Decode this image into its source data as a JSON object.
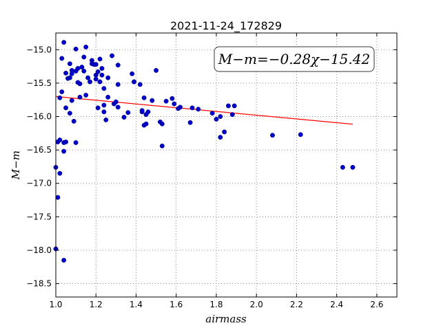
{
  "chart_data": {
    "type": "scatter",
    "title": "2021-11-24_172829",
    "xlabel": "airmass",
    "ylabel": "M−m",
    "xlim": [
      1.0,
      2.7
    ],
    "ylim": [
      -18.7,
      -14.75
    ],
    "xticks": [
      1.0,
      1.2,
      1.4,
      1.6,
      1.8,
      2.0,
      2.2,
      2.4,
      2.6
    ],
    "xtick_labels": [
      "1.0",
      "1.2",
      "1.4",
      "1.6",
      "1.8",
      "2.0",
      "2.2",
      "2.4",
      "2.6"
    ],
    "yticks": [
      -15.0,
      -15.5,
      -16.0,
      -16.5,
      -17.0,
      -17.5,
      -18.0,
      -18.5
    ],
    "ytick_labels": [
      "−15.0",
      "−15.5",
      "−16.0",
      "−16.5",
      "−17.0",
      "−17.5",
      "−18.0",
      "−18.5"
    ],
    "grid": true,
    "annotation": "M−m=−0.28χ−15.42",
    "colors": {
      "points": "#0000cc",
      "fit": "#ff0000",
      "grid": "#888888"
    },
    "fit": {
      "slope": -0.28,
      "intercept": -15.42,
      "x_range": [
        1.0,
        2.48
      ]
    },
    "points": [
      [
        1.0,
        -16.76
      ],
      [
        1.0,
        -17.98
      ],
      [
        1.01,
        -17.21
      ],
      [
        1.01,
        -16.38
      ],
      [
        1.02,
        -16.35
      ],
      [
        1.02,
        -16.85
      ],
      [
        1.02,
        -15.72
      ],
      [
        1.03,
        -15.63
      ],
      [
        1.03,
        -15.13
      ],
      [
        1.04,
        -14.89
      ],
      [
        1.04,
        -18.15
      ],
      [
        1.04,
        -16.39
      ],
      [
        1.04,
        -16.52
      ],
      [
        1.05,
        -16.38
      ],
      [
        1.05,
        -15.87
      ],
      [
        1.05,
        -15.35
      ],
      [
        1.06,
        -15.43
      ],
      [
        1.07,
        -15.42
      ],
      [
        1.07,
        -15.95
      ],
      [
        1.07,
        -15.21
      ],
      [
        1.08,
        -15.31
      ],
      [
        1.08,
        -15.36
      ],
      [
        1.08,
        -15.76
      ],
      [
        1.09,
        -16.07
      ],
      [
        1.1,
        -15.32
      ],
      [
        1.1,
        -16.39
      ],
      [
        1.1,
        -14.99
      ],
      [
        1.11,
        -15.28
      ],
      [
        1.11,
        -15.49
      ],
      [
        1.12,
        -15.51
      ],
      [
        1.12,
        -15.71
      ],
      [
        1.13,
        -15.26
      ],
      [
        1.14,
        -15.11
      ],
      [
        1.14,
        -15.32
      ],
      [
        1.15,
        -14.96
      ],
      [
        1.15,
        -15.68
      ],
      [
        1.16,
        -15.42
      ],
      [
        1.17,
        -15.48
      ],
      [
        1.18,
        -15.16
      ],
      [
        1.18,
        -15.21
      ],
      [
        1.19,
        -15.22
      ],
      [
        1.2,
        -15.22
      ],
      [
        1.2,
        -15.38
      ],
      [
        1.2,
        -15.44
      ],
      [
        1.21,
        -15.33
      ],
      [
        1.21,
        -15.87
      ],
      [
        1.22,
        -15.14
      ],
      [
        1.22,
        -15.48
      ],
      [
        1.23,
        -15.28
      ],
      [
        1.23,
        -15.38
      ],
      [
        1.24,
        -15.58
      ],
      [
        1.24,
        -15.83
      ],
      [
        1.24,
        -15.93
      ],
      [
        1.25,
        -16.05
      ],
      [
        1.26,
        -15.42
      ],
      [
        1.26,
        -15.71
      ],
      [
        1.28,
        -15.09
      ],
      [
        1.29,
        -15.81
      ],
      [
        1.3,
        -15.78
      ],
      [
        1.31,
        -15.86
      ],
      [
        1.31,
        -15.23
      ],
      [
        1.31,
        -15.52
      ],
      [
        1.34,
        -16.01
      ],
      [
        1.36,
        -15.94
      ],
      [
        1.38,
        -15.36
      ],
      [
        1.39,
        -15.48
      ],
      [
        1.39,
        -15.48
      ],
      [
        1.42,
        -15.52
      ],
      [
        1.43,
        -15.93
      ],
      [
        1.43,
        -15.91
      ],
      [
        1.44,
        -15.72
      ],
      [
        1.44,
        -16.13
      ],
      [
        1.45,
        -16.11
      ],
      [
        1.45,
        -15.97
      ],
      [
        1.46,
        -15.93
      ],
      [
        1.48,
        -15.76
      ],
      [
        1.5,
        -15.31
      ],
      [
        1.52,
        -16.08
      ],
      [
        1.53,
        -16.11
      ],
      [
        1.53,
        -16.44
      ],
      [
        1.55,
        -15.77
      ],
      [
        1.58,
        -15.73
      ],
      [
        1.59,
        -15.81
      ],
      [
        1.61,
        -15.88
      ],
      [
        1.62,
        -15.86
      ],
      [
        1.67,
        -16.09
      ],
      [
        1.68,
        -15.87
      ],
      [
        1.71,
        -15.89
      ],
      [
        1.78,
        -15.95
      ],
      [
        1.8,
        -16.04
      ],
      [
        1.82,
        -16.31
      ],
      [
        1.82,
        -16.0
      ],
      [
        1.84,
        -16.23
      ],
      [
        1.86,
        -15.84
      ],
      [
        1.88,
        -15.97
      ],
      [
        1.89,
        -15.84
      ],
      [
        2.08,
        -16.28
      ],
      [
        2.22,
        -16.27
      ],
      [
        2.43,
        -16.76
      ],
      [
        2.48,
        -16.76
      ]
    ]
  }
}
